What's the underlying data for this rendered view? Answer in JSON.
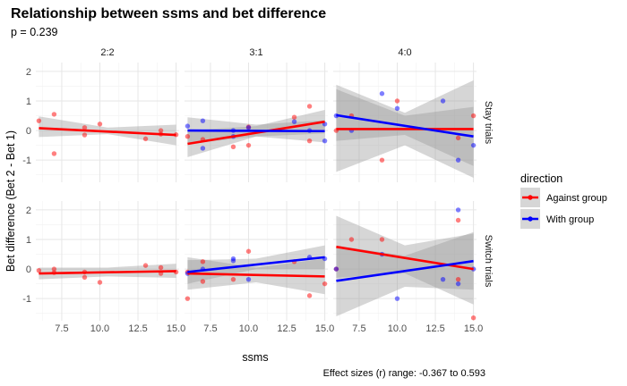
{
  "chart_data": {
    "type": "scatter",
    "title": "Relationship between ssms and bet difference",
    "subtitle": "p = 0.239",
    "caption": "Effect sizes (r) range: -0.367 to 0.593",
    "xlabel": "ssms",
    "ylabel": "Bet difference (Bet 2 - Bet 1)",
    "xlim": [
      5.8,
      15.2
    ],
    "ylim": [
      -1.75,
      2.3
    ],
    "x_ticks": [
      "7.5",
      "10.0",
      "12.5",
      "15.0"
    ],
    "y_ticks": [
      "-1",
      "0",
      "1",
      "2"
    ],
    "x_tick_values": [
      7.5,
      10.0,
      12.5,
      15.0
    ],
    "y_tick_values": [
      -1,
      0,
      1,
      2
    ],
    "columns": [
      "2:2",
      "3:1",
      "4:0"
    ],
    "rows": [
      "Stay trials",
      "Switch trials"
    ],
    "legend": {
      "title": "direction",
      "entries": [
        {
          "label": "Against group",
          "color": "#ff0000"
        },
        {
          "label": "With group",
          "color": "#0000ff"
        }
      ]
    },
    "series_colors": {
      "against": "#ff0000",
      "with": "#0000ff"
    },
    "panels": [
      {
        "row": "Stay trials",
        "col": "2:2",
        "points": [
          {
            "x": 6,
            "y": 0.33,
            "g": "against"
          },
          {
            "x": 7,
            "y": 0.55,
            "g": "against"
          },
          {
            "x": 7,
            "y": -0.78,
            "g": "against"
          },
          {
            "x": 9,
            "y": 0.1,
            "g": "against"
          },
          {
            "x": 9,
            "y": -0.15,
            "g": "against"
          },
          {
            "x": 10,
            "y": 0.22,
            "g": "against"
          },
          {
            "x": 13,
            "y": -0.28,
            "g": "against"
          },
          {
            "x": 14,
            "y": 0.0,
            "g": "against"
          },
          {
            "x": 14,
            "y": -0.12,
            "g": "against"
          },
          {
            "x": 15,
            "y": -0.14,
            "g": "against"
          }
        ],
        "fits": [
          {
            "g": "against",
            "x": [
              6,
              15
            ],
            "y": [
              0.08,
              -0.15
            ],
            "band_low": [
              [
                6,
                -0.22
              ],
              [
                10.5,
                -0.12
              ],
              [
                15,
                -0.5
              ]
            ],
            "band_high": [
              [
                6,
                0.48
              ],
              [
                10.5,
                0.1
              ],
              [
                15,
                0.2
              ]
            ]
          }
        ]
      },
      {
        "row": "Stay trials",
        "col": "3:1",
        "points": [
          {
            "x": 6,
            "y": -0.2,
            "g": "against"
          },
          {
            "x": 7,
            "y": -0.3,
            "g": "against"
          },
          {
            "x": 9,
            "y": -0.55,
            "g": "against"
          },
          {
            "x": 10,
            "y": -0.5,
            "g": "against"
          },
          {
            "x": 10,
            "y": 0.12,
            "g": "against"
          },
          {
            "x": 13,
            "y": 0.45,
            "g": "against"
          },
          {
            "x": 14,
            "y": 0.82,
            "g": "against"
          },
          {
            "x": 14,
            "y": -0.35,
            "g": "against"
          },
          {
            "x": 6,
            "y": 0.15,
            "g": "with"
          },
          {
            "x": 7,
            "y": 0.33,
            "g": "with"
          },
          {
            "x": 7,
            "y": -0.6,
            "g": "with"
          },
          {
            "x": 9,
            "y": 0.0,
            "g": "with"
          },
          {
            "x": 9,
            "y": -0.2,
            "g": "with"
          },
          {
            "x": 10,
            "y": 0.1,
            "g": "with"
          },
          {
            "x": 13,
            "y": 0.3,
            "g": "with"
          },
          {
            "x": 14,
            "y": 0.0,
            "g": "with"
          },
          {
            "x": 15,
            "y": -0.35,
            "g": "with"
          },
          {
            "x": 15,
            "y": 0.22,
            "g": "with"
          }
        ],
        "fits": [
          {
            "g": "against",
            "x": [
              6,
              15
            ],
            "y": [
              -0.45,
              0.3
            ],
            "band_low": [
              [
                6,
                -0.9
              ],
              [
                10.5,
                -0.2
              ],
              [
                15,
                -0.1
              ]
            ],
            "band_high": [
              [
                6,
                0.0
              ],
              [
                10.5,
                0.15
              ],
              [
                15,
                0.7
              ]
            ]
          },
          {
            "g": "with",
            "x": [
              6,
              15
            ],
            "y": [
              0.0,
              -0.02
            ],
            "band_low": [
              [
                6,
                -0.45
              ],
              [
                10.5,
                -0.2
              ],
              [
                15,
                -0.4
              ]
            ],
            "band_high": [
              [
                6,
                0.45
              ],
              [
                10.5,
                0.2
              ],
              [
                15,
                0.35
              ]
            ]
          }
        ]
      },
      {
        "row": "Stay trials",
        "col": "4:0",
        "points": [
          {
            "x": 6,
            "y": 0.0,
            "g": "against"
          },
          {
            "x": 7,
            "y": 0.5,
            "g": "against"
          },
          {
            "x": 9,
            "y": -1.0,
            "g": "against"
          },
          {
            "x": 10,
            "y": 1.0,
            "g": "against"
          },
          {
            "x": 14,
            "y": -0.25,
            "g": "against"
          },
          {
            "x": 15,
            "y": 0.5,
            "g": "against"
          },
          {
            "x": 6,
            "y": 0.5,
            "g": "with"
          },
          {
            "x": 7,
            "y": 0.0,
            "g": "with"
          },
          {
            "x": 9,
            "y": 1.25,
            "g": "with"
          },
          {
            "x": 10,
            "y": 0.75,
            "g": "with"
          },
          {
            "x": 13,
            "y": 1.0,
            "g": "with"
          },
          {
            "x": 14,
            "y": -1.0,
            "g": "with"
          },
          {
            "x": 15,
            "y": -0.5,
            "g": "with"
          }
        ],
        "fits": [
          {
            "g": "against",
            "x": [
              6,
              15
            ],
            "y": [
              0.05,
              0.05
            ],
            "band_low": [
              [
                6,
                -1.4
              ],
              [
                10.5,
                -0.5
              ],
              [
                15,
                -1.6
              ]
            ],
            "band_high": [
              [
                6,
                1.55
              ],
              [
                10.5,
                0.6
              ],
              [
                15,
                1.7
              ]
            ]
          },
          {
            "g": "with",
            "x": [
              6,
              15
            ],
            "y": [
              0.52,
              -0.2
            ],
            "band_low": [
              [
                6,
                -0.35
              ],
              [
                10.5,
                -0.15
              ],
              [
                15,
                -1.2
              ]
            ],
            "band_high": [
              [
                6,
                1.4
              ],
              [
                10.5,
                0.5
              ],
              [
                15,
                0.8
              ]
            ]
          }
        ]
      },
      {
        "row": "Switch trials",
        "col": "2:2",
        "points": [
          {
            "x": 6,
            "y": -0.05,
            "g": "against"
          },
          {
            "x": 7,
            "y": 0.0,
            "g": "against"
          },
          {
            "x": 7,
            "y": -0.12,
            "g": "against"
          },
          {
            "x": 9,
            "y": -0.1,
            "g": "against"
          },
          {
            "x": 9,
            "y": -0.28,
            "g": "against"
          },
          {
            "x": 10,
            "y": -0.45,
            "g": "against"
          },
          {
            "x": 13,
            "y": 0.12,
            "g": "against"
          },
          {
            "x": 14,
            "y": 0.05,
            "g": "against"
          },
          {
            "x": 14,
            "y": -0.15,
            "g": "against"
          },
          {
            "x": 15,
            "y": -0.1,
            "g": "against"
          }
        ],
        "fits": [
          {
            "g": "against",
            "x": [
              6,
              15
            ],
            "y": [
              -0.15,
              -0.07
            ],
            "band_low": [
              [
                6,
                -0.35
              ],
              [
                10.5,
                -0.25
              ],
              [
                15,
                -0.3
              ]
            ],
            "band_high": [
              [
                6,
                0.05
              ],
              [
                10.5,
                0.05
              ],
              [
                15,
                0.18
              ]
            ]
          }
        ]
      },
      {
        "row": "Switch trials",
        "col": "3:1",
        "points": [
          {
            "x": 6,
            "y": -1.0,
            "g": "against"
          },
          {
            "x": 6,
            "y": -0.1,
            "g": "against"
          },
          {
            "x": 7,
            "y": 0.25,
            "g": "against"
          },
          {
            "x": 7,
            "y": -0.42,
            "g": "against"
          },
          {
            "x": 9,
            "y": -0.35,
            "g": "against"
          },
          {
            "x": 10,
            "y": 0.6,
            "g": "against"
          },
          {
            "x": 13,
            "y": 0.25,
            "g": "against"
          },
          {
            "x": 14,
            "y": -0.9,
            "g": "against"
          },
          {
            "x": 15,
            "y": -0.5,
            "g": "against"
          },
          {
            "x": 6,
            "y": -0.15,
            "g": "with"
          },
          {
            "x": 7,
            "y": 0.0,
            "g": "with"
          },
          {
            "x": 9,
            "y": 0.35,
            "g": "with"
          },
          {
            "x": 9,
            "y": 0.28,
            "g": "with"
          },
          {
            "x": 10,
            "y": -0.35,
            "g": "with"
          },
          {
            "x": 14,
            "y": 0.4,
            "g": "with"
          },
          {
            "x": 15,
            "y": 0.35,
            "g": "with"
          }
        ],
        "fits": [
          {
            "g": "against",
            "x": [
              6,
              15
            ],
            "y": [
              -0.15,
              -0.25
            ],
            "band_low": [
              [
                6,
                -0.7
              ],
              [
                10.5,
                -0.45
              ],
              [
                15,
                -0.85
              ]
            ],
            "band_high": [
              [
                6,
                0.4
              ],
              [
                10.5,
                0.05
              ],
              [
                15,
                0.35
              ]
            ]
          },
          {
            "g": "with",
            "x": [
              6,
              15
            ],
            "y": [
              -0.1,
              0.4
            ],
            "band_low": [
              [
                6,
                -0.5
              ],
              [
                10.5,
                0.0
              ],
              [
                15,
                0.0
              ]
            ],
            "band_high": [
              [
                6,
                0.3
              ],
              [
                10.5,
                0.35
              ],
              [
                15,
                0.8
              ]
            ]
          }
        ]
      },
      {
        "row": "Switch trials",
        "col": "4:0",
        "points": [
          {
            "x": 6,
            "y": 0.0,
            "g": "against"
          },
          {
            "x": 7,
            "y": 1.0,
            "g": "against"
          },
          {
            "x": 9,
            "y": 1.0,
            "g": "against"
          },
          {
            "x": 14,
            "y": 1.65,
            "g": "against"
          },
          {
            "x": 14,
            "y": -0.35,
            "g": "against"
          },
          {
            "x": 15,
            "y": -1.65,
            "g": "against"
          },
          {
            "x": 6,
            "y": 0.0,
            "g": "with"
          },
          {
            "x": 9,
            "y": 0.5,
            "g": "with"
          },
          {
            "x": 10,
            "y": -1.0,
            "g": "with"
          },
          {
            "x": 13,
            "y": -0.35,
            "g": "with"
          },
          {
            "x": 14,
            "y": 2.0,
            "g": "with"
          },
          {
            "x": 14,
            "y": -0.5,
            "g": "with"
          },
          {
            "x": 15,
            "y": 0.0,
            "g": "with"
          }
        ],
        "fits": [
          {
            "g": "against",
            "x": [
              6,
              15
            ],
            "y": [
              0.75,
              0.0
            ],
            "band_low": [
              [
                6,
                -0.3
              ],
              [
                10.5,
                -0.15
              ],
              [
                15,
                -1.2
              ]
            ],
            "band_high": [
              [
                6,
                1.8
              ],
              [
                10.5,
                0.8
              ],
              [
                15,
                1.2
              ]
            ]
          },
          {
            "g": "with",
            "x": [
              6,
              15
            ],
            "y": [
              -0.4,
              0.27
            ],
            "band_low": [
              [
                6,
                -1.6
              ],
              [
                10.5,
                -0.6
              ],
              [
                15,
                -0.7
              ]
            ],
            "band_high": [
              [
                6,
                0.8
              ],
              [
                10.5,
                0.45
              ],
              [
                15,
                1.25
              ]
            ]
          }
        ]
      }
    ]
  }
}
